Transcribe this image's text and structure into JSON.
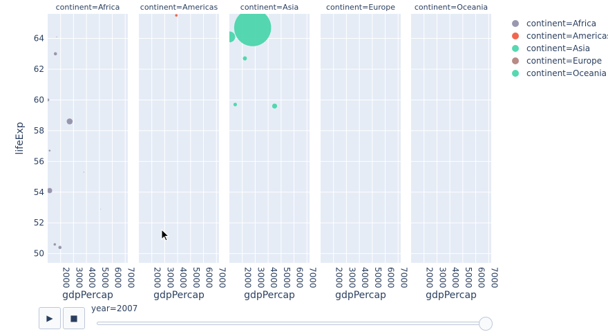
{
  "chart_data": {
    "type": "scatter",
    "x_field": "gdpPercap",
    "y_field": "lifeExp",
    "ylabel": "lifeExp",
    "xlim": [
      1000,
      7200
    ],
    "ylim": [
      49.4,
      65.6
    ],
    "y_ticks": [
      50,
      52,
      54,
      56,
      58,
      60,
      62,
      64
    ],
    "x_ticks": [
      2000,
      3000,
      4000,
      5000,
      6000,
      7000
    ],
    "grid": true,
    "legend_position": "right",
    "facets": [
      {
        "title": "continent=Africa",
        "xlabel": "gdpPercap",
        "color": "#8f8da6",
        "points": [
          {
            "x": 1700,
            "y": 64.1,
            "size": 0.8
          },
          {
            "x": 1600,
            "y": 63.0,
            "size": 2.5
          },
          {
            "x": 1020,
            "y": 60.0,
            "size": 2.2
          },
          {
            "x": 2700,
            "y": 58.6,
            "size": 4.5
          },
          {
            "x": 1150,
            "y": 56.7,
            "size": 1.5
          },
          {
            "x": 3800,
            "y": 55.3,
            "size": 0.8
          },
          {
            "x": 1150,
            "y": 54.1,
            "size": 4.0
          },
          {
            "x": 5100,
            "y": 52.9,
            "size": 0.6
          },
          {
            "x": 1550,
            "y": 50.6,
            "size": 2.0
          },
          {
            "x": 1950,
            "y": 50.4,
            "size": 2.5
          }
        ]
      },
      {
        "title": "continent=Americas",
        "xlabel": "gdpPercap",
        "color": "#ef553b",
        "points": [
          {
            "x": 3900,
            "y": 65.5,
            "size": 2.0
          }
        ]
      },
      {
        "title": "continent=Asia",
        "xlabel": "gdpPercap",
        "color": "#44d4a8",
        "points": [
          {
            "x": 2800,
            "y": 64.7,
            "size": 27
          },
          {
            "x": 1030,
            "y": 64.1,
            "size": 8
          },
          {
            "x": 2200,
            "y": 62.7,
            "size": 3.2
          },
          {
            "x": 1450,
            "y": 59.7,
            "size": 2.8
          },
          {
            "x": 4500,
            "y": 59.6,
            "size": 3.8
          }
        ]
      },
      {
        "title": "continent=Europe",
        "xlabel": "gdpPercap",
        "color": "#b07e79",
        "points": []
      },
      {
        "title": "continent=Oceania",
        "xlabel": "gdpPercap",
        "color": "#44d4a8",
        "points": []
      }
    ],
    "legend": [
      {
        "label": "continent=Africa",
        "color": "#8f8da6"
      },
      {
        "label": "continent=Americas",
        "color": "#ef553b"
      },
      {
        "label": "continent=Asia",
        "color": "#44d4a8"
      },
      {
        "label": "continent=Europe",
        "color": "#b07e79"
      },
      {
        "label": "continent=Oceania",
        "color": "#44d4a8"
      }
    ]
  },
  "controls": {
    "play_icon": "play-icon",
    "stop_icon": "stop-icon",
    "slider_label": "year=2007",
    "slider_value": 1.0
  }
}
